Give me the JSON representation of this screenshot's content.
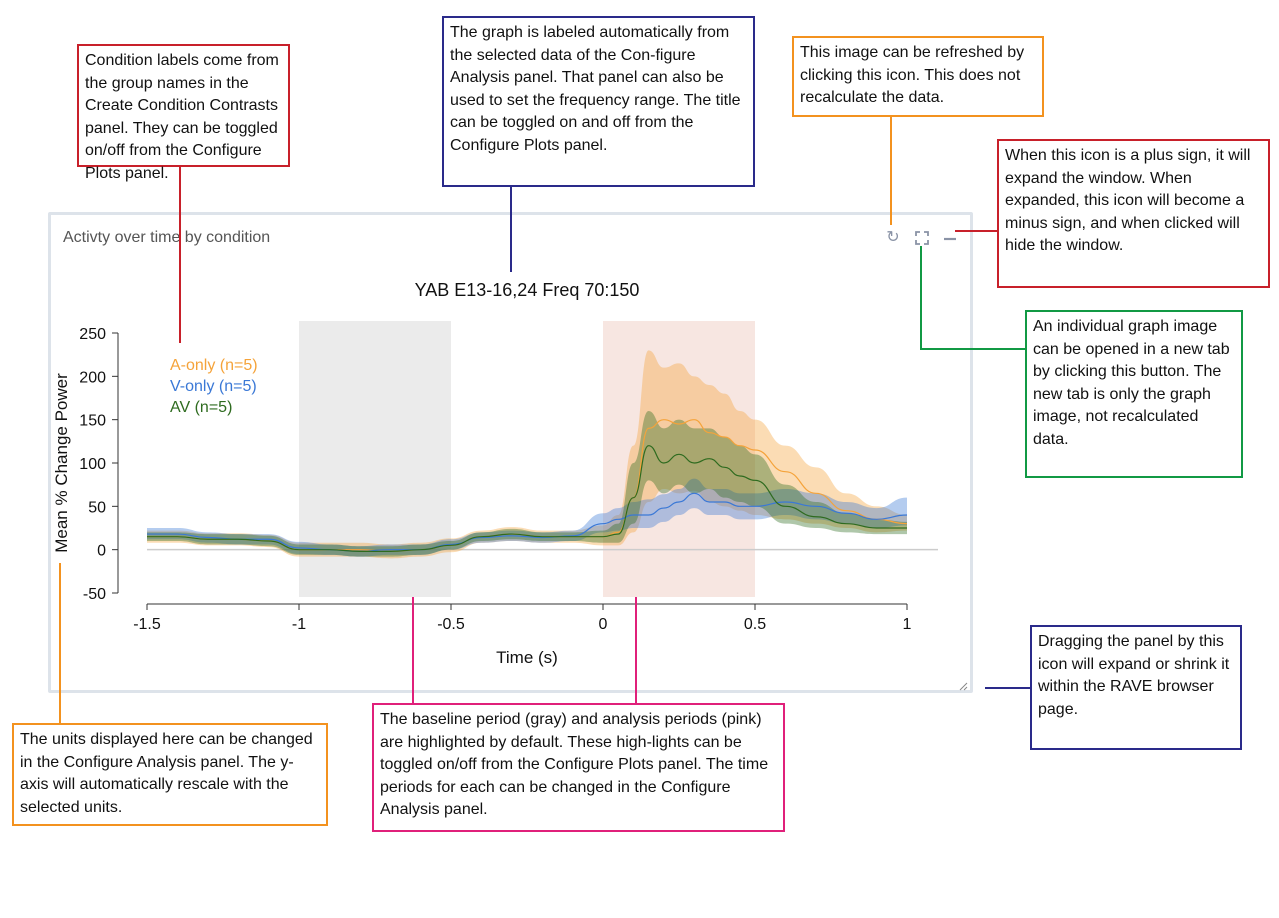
{
  "panel": {
    "title": "Activty over time by condition",
    "icons": [
      "refresh-icon",
      "expand-icon",
      "minimize-icon",
      "resize-handle-icon"
    ]
  },
  "annotations": [
    {
      "text": "Condition labels come from the group names in the Create Condition Contrasts panel. They can be toggled on/off from the Configure Plots panel.",
      "color": "#c8202a"
    },
    {
      "text": "The graph is labeled automatically from the selected data of the Con-figure Analysis panel. That panel can also be used to set the frequency range. The title can be toggled on and off from the Configure Plots panel.",
      "color": "#2a2a8a"
    },
    {
      "text": "This image can be refreshed by clicking this icon.  This does not recalculate the data.",
      "color": "#f3921f"
    },
    {
      "text": "When this icon is a plus sign, it will expand the window. When expanded, this icon will become a minus sign, and when clicked will hide the window.",
      "color": "#c8202a"
    },
    {
      "text": "An individual graph image can be opened in a new tab by clicking this button. The new tab is only the graph image, not recalculated data.",
      "color": "#119944"
    },
    {
      "text": "Dragging the panel by this icon will expand or shrink it within the RAVE browser page.",
      "color": "#2a2a8a"
    },
    {
      "text": "The units displayed here can be changed in the Configure Analysis panel. The y-axis will automatically rescale with the selected units.",
      "color": "#f3921f"
    },
    {
      "text": "The baseline period (gray) and analysis periods (pink) are highlighted by default. These high-lights can be toggled on/off from the Configure Plots panel. The time periods for each can be changed in the Configure Analysis panel.",
      "color": "#e0207a"
    }
  ],
  "chart_data": {
    "type": "line",
    "title": "YAB E13-16,24 Freq 70:150",
    "xlabel": "Time (s)",
    "ylabel": "Mean % Change Power",
    "xlim": [
      -1.5,
      1
    ],
    "ylim": [
      -50,
      250
    ],
    "xticks": [
      "-1.5",
      "-1",
      "-0.5",
      "0",
      "0.5",
      "1"
    ],
    "yticks": [
      "250",
      "200",
      "150",
      "100",
      "50",
      "0",
      "-50"
    ],
    "baseline_window": [
      -1,
      -0.5
    ],
    "analysis_window": [
      0,
      0.5
    ],
    "baseline_color": "#ebebeb",
    "analysis_color": "#f7e6e1",
    "legend_placement": "top-left",
    "x": [
      -1.5,
      -1.4,
      -1.3,
      -1.2,
      -1.1,
      -1.0,
      -0.9,
      -0.8,
      -0.7,
      -0.6,
      -0.5,
      -0.4,
      -0.3,
      -0.2,
      -0.1,
      0,
      0.05,
      0.1,
      0.15,
      0.2,
      0.25,
      0.3,
      0.35,
      0.4,
      0.45,
      0.5,
      0.6,
      0.7,
      0.8,
      0.9,
      1.0
    ],
    "series": [
      {
        "name": "A-only (n=5)",
        "color": "#f5a33a",
        "mean": [
          15,
          15,
          12,
          12,
          10,
          0,
          0,
          0,
          -2,
          0,
          5,
          15,
          18,
          15,
          15,
          15,
          20,
          60,
          140,
          150,
          145,
          150,
          135,
          130,
          120,
          115,
          90,
          65,
          45,
          35,
          30
        ],
        "lower": [
          8,
          8,
          5,
          5,
          3,
          -8,
          -8,
          -8,
          -10,
          -8,
          -3,
          8,
          10,
          8,
          8,
          5,
          5,
          20,
          55,
          70,
          65,
          68,
          55,
          50,
          45,
          40,
          35,
          30,
          25,
          20,
          22
        ],
        "upper": [
          22,
          22,
          19,
          19,
          17,
          8,
          8,
          8,
          6,
          8,
          13,
          22,
          26,
          22,
          22,
          28,
          40,
          120,
          230,
          210,
          215,
          200,
          190,
          180,
          160,
          150,
          120,
          95,
          65,
          50,
          40
        ]
      },
      {
        "name": "V-only (n=5)",
        "color": "#3a78d6",
        "mean": [
          18,
          18,
          14,
          12,
          12,
          2,
          0,
          -2,
          0,
          0,
          6,
          14,
          16,
          14,
          16,
          30,
          35,
          40,
          40,
          48,
          55,
          65,
          55,
          55,
          50,
          50,
          55,
          50,
          42,
          35,
          40
        ],
        "lower": [
          12,
          12,
          8,
          6,
          6,
          -5,
          -6,
          -8,
          -6,
          -6,
          0,
          8,
          10,
          8,
          10,
          20,
          22,
          25,
          25,
          32,
          40,
          48,
          40,
          40,
          35,
          35,
          40,
          35,
          30,
          25,
          28
        ],
        "upper": [
          25,
          25,
          20,
          18,
          18,
          9,
          6,
          4,
          6,
          6,
          12,
          20,
          22,
          20,
          22,
          42,
          48,
          55,
          58,
          64,
          70,
          82,
          70,
          70,
          65,
          65,
          70,
          65,
          55,
          48,
          60
        ]
      },
      {
        "name": "AV (n=5)",
        "color": "#2e6b1f",
        "mean": [
          15,
          15,
          12,
          12,
          10,
          0,
          0,
          -2,
          -2,
          0,
          5,
          15,
          18,
          15,
          15,
          15,
          18,
          60,
          120,
          100,
          110,
          100,
          105,
          95,
          85,
          80,
          50,
          38,
          30,
          25,
          25
        ],
        "lower": [
          10,
          10,
          6,
          6,
          4,
          -6,
          -6,
          -8,
          -8,
          -6,
          0,
          10,
          12,
          10,
          10,
          8,
          8,
          30,
          80,
          65,
          75,
          65,
          70,
          60,
          55,
          50,
          30,
          25,
          20,
          18,
          18
        ],
        "upper": [
          20,
          20,
          18,
          18,
          16,
          6,
          6,
          4,
          4,
          6,
          10,
          20,
          24,
          20,
          20,
          22,
          30,
          100,
          160,
          140,
          150,
          140,
          140,
          130,
          120,
          110,
          75,
          55,
          42,
          35,
          32
        ]
      }
    ]
  }
}
